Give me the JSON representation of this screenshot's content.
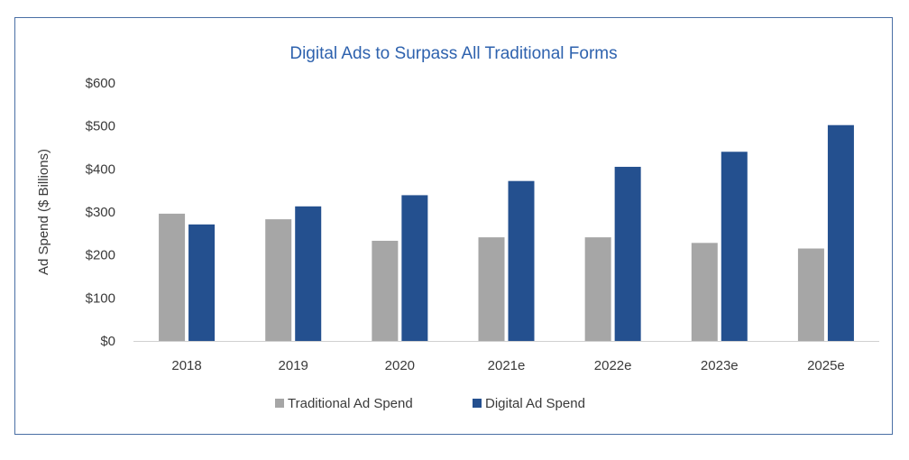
{
  "chart_data": {
    "type": "bar",
    "title": "Digital Ads to Surpass All Traditional Forms",
    "xlabel": "",
    "ylabel": "Ad Spend ($ Billions)",
    "ylim": [
      0,
      600
    ],
    "yticks": [
      0,
      100,
      200,
      300,
      400,
      500,
      600
    ],
    "ytick_labels": [
      "$0",
      "$100",
      "$200",
      "$300",
      "$400",
      "$500",
      "$600"
    ],
    "categories": [
      "2018",
      "2019",
      "2020",
      "2021e",
      "2022e",
      "2023e",
      "2025e"
    ],
    "series": [
      {
        "name": "Traditional Ad Spend",
        "color": "#a6a6a6",
        "values": [
          296,
          283,
          233,
          241,
          241,
          228,
          215
        ]
      },
      {
        "name": "Digital Ad Spend",
        "color": "#24508f",
        "values": [
          271,
          313,
          339,
          372,
          405,
          440,
          502
        ]
      }
    ],
    "grid": false,
    "legend": "bottom"
  }
}
